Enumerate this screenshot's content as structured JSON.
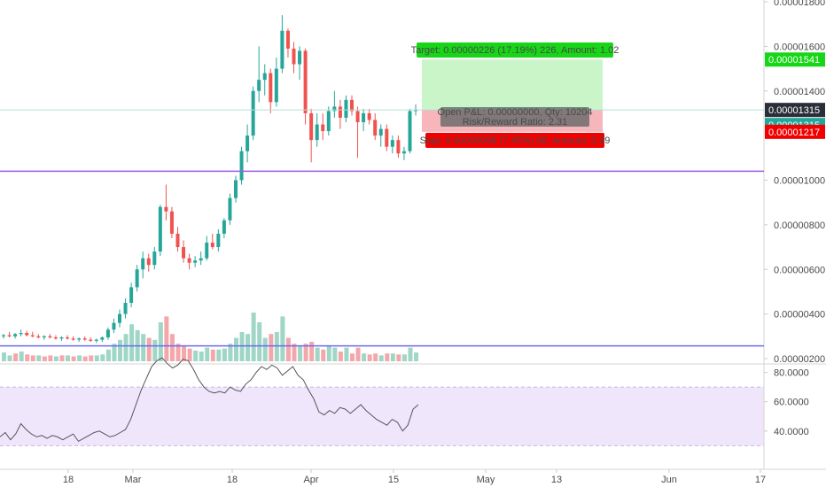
{
  "chart_data": {
    "type": "candlestick",
    "colors": {
      "up": "#26a69a",
      "down": "#ef5350",
      "vol_up": "#9fd6c6",
      "vol_down": "#f4a7ab",
      "hline": "#9c5ce0",
      "vol_hline": "#6a6af0",
      "current_line": "#b5dfd7",
      "target_zone": "#c9f5c9",
      "stop_zone": "#f7b6bc",
      "target_label": "#17d617",
      "stop_label": "#f00000",
      "rsi_band": "#f0e6fc",
      "rsi_line": "#555555"
    },
    "price_axis": {
      "range": [
        1.9e-06,
        1.8e-06
      ],
      "ticks": [
        "0.00001800",
        "0.00001600",
        "0.00001400",
        "0.00001000",
        "0.00000800",
        "0.00000600",
        "0.00000400",
        "0.00000200"
      ],
      "tick_values": [
        1.8e-05,
        1.6e-05,
        1.4e-05,
        1e-05,
        8e-06,
        6e-06,
        4e-06,
        2e-06
      ]
    },
    "rsi_axis": {
      "ticks": [
        "80.0000",
        "60.0000",
        "40.0000"
      ],
      "tick_values": [
        80,
        60,
        40
      ],
      "band": [
        30,
        70
      ]
    },
    "time_axis": {
      "labels": [
        "18",
        "Mar",
        "18",
        "Apr",
        "15",
        "May",
        "13",
        "Jun",
        "17"
      ]
    },
    "horizontal_lines": [
      1.04e-05,
      2.57e-06
    ],
    "position": {
      "entry": 1.315e-05,
      "target": 1.541e-05,
      "stop": 1.217e-05,
      "target_label": "Target: 0.00000226 (17.19%) 226, Amount: 1.02",
      "open_label": "Open P&L: 0.00000000, Qty: 10204",
      "rr_label": "Risk/Reward Ratio: 2.31",
      "stop_label": "Stop: 0.00000098 (7.45%) 98, Amount: 0.99"
    },
    "price_tags": [
      {
        "text": "0.00001541",
        "value": 1.541e-05,
        "color": "#17d617"
      },
      {
        "text": "0.00001315",
        "value": 1.315e-05,
        "color": "#2a2e39"
      },
      {
        "text": "0.00001315",
        "value": 1.315e-05,
        "color": "#26a69a",
        "offset": 1
      },
      {
        "text": "0.00001217",
        "value": 1.217e-05,
        "color": "#f00000"
      }
    ],
    "candles": [
      [
        3e-06,
        3.1e-06,
        2.9e-06,
        3.05e-06
      ],
      [
        3.05e-06,
        3.2e-06,
        2.95e-06,
        3e-06
      ],
      [
        3e-06,
        3.15e-06,
        2.9e-06,
        3.1e-06
      ],
      [
        3.1e-06,
        3.3e-06,
        3e-06,
        3.15e-06
      ],
      [
        3.15e-06,
        3.25e-06,
        3e-06,
        3.05e-06
      ],
      [
        3.05e-06,
        3.2e-06,
        2.95e-06,
        3e-06
      ],
      [
        3e-06,
        3.1e-06,
        2.9e-06,
        2.95e-06
      ],
      [
        2.95e-06,
        3.05e-06,
        2.85e-06,
        3e-06
      ],
      [
        3e-06,
        3.1e-06,
        2.9e-06,
        2.95e-06
      ],
      [
        2.95e-06,
        3.05e-06,
        2.85e-06,
        2.9e-06
      ],
      [
        2.9e-06,
        3e-06,
        2.8e-06,
        2.95e-06
      ],
      [
        2.95e-06,
        3.05e-06,
        2.85e-06,
        2.9e-06
      ],
      [
        2.9e-06,
        3e-06,
        2.8e-06,
        2.85e-06
      ],
      [
        2.85e-06,
        2.95e-06,
        2.75e-06,
        2.9e-06
      ],
      [
        2.9e-06,
        3e-06,
        2.8e-06,
        2.85e-06
      ],
      [
        2.85e-06,
        2.95e-06,
        2.75e-06,
        2.8e-06
      ],
      [
        2.8e-06,
        2.9e-06,
        2.7e-06,
        2.85e-06
      ],
      [
        2.85e-06,
        3e-06,
        2.75e-06,
        2.95e-06
      ],
      [
        2.95e-06,
        3.4e-06,
        2.85e-06,
        3.3e-06
      ],
      [
        3.3e-06,
        3.8e-06,
        3.15e-06,
        3.6e-06
      ],
      [
        3.6e-06,
        4.2e-06,
        3.4e-06,
        4e-06
      ],
      [
        4e-06,
        4.7e-06,
        3.8e-06,
        4.5e-06
      ],
      [
        4.5e-06,
        5.4e-06,
        4.3e-06,
        5.2e-06
      ],
      [
        5.2e-06,
        6.2e-06,
        5e-06,
        6e-06
      ],
      [
        6e-06,
        6.8e-06,
        5.6e-06,
        6.5e-06
      ],
      [
        6.5e-06,
        6.7e-06,
        5.9e-06,
        6.2e-06
      ],
      [
        6.2e-06,
        7e-06,
        6e-06,
        6.8e-06
      ],
      [
        6.8e-06,
        8.9e-06,
        6.6e-06,
        8.8e-06
      ],
      [
        8.8e-06,
        9.8e-06,
        8.2e-06,
        8.6e-06
      ],
      [
        8.6e-06,
        8.8e-06,
        7.4e-06,
        7.6e-06
      ],
      [
        7.6e-06,
        7.9e-06,
        6.8e-06,
        7e-06
      ],
      [
        7e-06,
        7.3e-06,
        6.3e-06,
        6.5e-06
      ],
      [
        6.5e-06,
        6.7e-06,
        6e-06,
        6.3e-06
      ],
      [
        6.3e-06,
        6.6e-06,
        6.1e-06,
        6.4e-06
      ],
      [
        6.4e-06,
        6.8e-06,
        6.2e-06,
        6.5e-06
      ],
      [
        6.5e-06,
        7.5e-06,
        6.4e-06,
        7.2e-06
      ],
      [
        7.2e-06,
        7.6e-06,
        6.9e-06,
        7e-06
      ],
      [
        7e-06,
        7.8e-06,
        6.8e-06,
        7.6e-06
      ],
      [
        7.6e-06,
        8.3e-06,
        7.4e-06,
        8.2e-06
      ],
      [
        8.2e-06,
        9.4e-06,
        8e-06,
        9.2e-06
      ],
      [
        9.2e-06,
        1.02e-05,
        9e-06,
        1e-05
      ],
      [
        1e-05,
        1.15e-05,
        9.8e-06,
        1.13e-05
      ],
      [
        1.13e-05,
        1.25e-05,
        1.08e-05,
        1.2e-05
      ],
      [
        1.2e-05,
        1.42e-05,
        1.18e-05,
        1.4e-05
      ],
      [
        1.4e-05,
        1.6e-05,
        1.35e-05,
        1.45e-05
      ],
      [
        1.45e-05,
        1.52e-05,
        1.38e-05,
        1.48e-05
      ],
      [
        1.48e-05,
        1.5e-05,
        1.3e-05,
        1.35e-05
      ],
      [
        1.35e-05,
        1.55e-05,
        1.33e-05,
        1.5e-05
      ],
      [
        1.5e-05,
        1.74e-05,
        1.48e-05,
        1.67e-05
      ],
      [
        1.67e-05,
        1.68e-05,
        1.55e-05,
        1.59e-05
      ],
      [
        1.59e-05,
        1.62e-05,
        1.48e-05,
        1.52e-05
      ],
      [
        1.52e-05,
        1.6e-05,
        1.45e-05,
        1.58e-05
      ],
      [
        1.58e-05,
        1.59e-05,
        1.25e-05,
        1.3e-05
      ],
      [
        1.3e-05,
        1.32e-05,
        1.08e-05,
        1.18e-05
      ],
      [
        1.18e-05,
        1.3e-05,
        1.15e-05,
        1.25e-05
      ],
      [
        1.25e-05,
        1.3e-05,
        1.18e-05,
        1.22e-05
      ],
      [
        1.22e-05,
        1.33e-05,
        1.2e-05,
        1.31e-05
      ],
      [
        1.31e-05,
        1.4e-05,
        1.28e-05,
        1.33e-05
      ],
      [
        1.33e-05,
        1.36e-05,
        1.23e-05,
        1.28e-05
      ],
      [
        1.28e-05,
        1.38e-05,
        1.26e-05,
        1.36e-05
      ],
      [
        1.36e-05,
        1.38e-05,
        1.29e-05,
        1.31e-05
      ],
      [
        1.31e-05,
        1.33e-05,
        1.1e-05,
        1.26e-05
      ],
      [
        1.26e-05,
        1.32e-05,
        1.22e-05,
        1.3e-05
      ],
      [
        1.3e-05,
        1.32e-05,
        1.25e-05,
        1.27e-05
      ],
      [
        1.27e-05,
        1.3e-05,
        1.18e-05,
        1.2e-05
      ],
      [
        1.2e-05,
        1.25e-05,
        1.15e-05,
        1.23e-05
      ],
      [
        1.23e-05,
        1.25e-05,
        1.13e-05,
        1.15e-05
      ],
      [
        1.15e-05,
        1.2e-05,
        1.12e-05,
        1.18e-05
      ],
      [
        1.18e-05,
        1.2e-05,
        1.1e-05,
        1.12e-05
      ],
      [
        1.12e-05,
        1.15e-05,
        1.09e-05,
        1.13e-05
      ],
      [
        1.13e-05,
        1.32e-05,
        1.12e-05,
        1.31e-05
      ],
      [
        1.31e-05,
        1.34e-05,
        1.29e-05,
        1.315e-05
      ]
    ],
    "volume": [
      [
        4.5e-07,
        1
      ],
      [
        3e-07,
        1
      ],
      [
        4e-07,
        0
      ],
      [
        5e-07,
        1
      ],
      [
        3.5e-07,
        0
      ],
      [
        3e-07,
        0
      ],
      [
        3e-07,
        1
      ],
      [
        2.5e-07,
        0
      ],
      [
        3e-07,
        0
      ],
      [
        2.5e-07,
        1
      ],
      [
        3e-07,
        0
      ],
      [
        3e-07,
        1
      ],
      [
        2.5e-07,
        0
      ],
      [
        3e-07,
        1
      ],
      [
        2.5e-07,
        0
      ],
      [
        3e-07,
        0
      ],
      [
        3e-07,
        1
      ],
      [
        3.5e-07,
        1
      ],
      [
        6e-07,
        1
      ],
      [
        9e-07,
        1
      ],
      [
        1.1e-06,
        1
      ],
      [
        1.4e-06,
        1
      ],
      [
        1.9e-06,
        1
      ],
      [
        1.6e-06,
        1
      ],
      [
        1.4e-06,
        1
      ],
      [
        1.2e-06,
        0
      ],
      [
        1.1e-06,
        1
      ],
      [
        2e-06,
        1
      ],
      [
        2.3e-06,
        0
      ],
      [
        1.4e-06,
        0
      ],
      [
        9e-07,
        0
      ],
      [
        8e-07,
        0
      ],
      [
        6.5e-07,
        0
      ],
      [
        5.5e-07,
        1
      ],
      [
        5e-07,
        1
      ],
      [
        7e-07,
        1
      ],
      [
        6e-07,
        0
      ],
      [
        6e-07,
        1
      ],
      [
        6.5e-07,
        1
      ],
      [
        9e-07,
        1
      ],
      [
        1.2e-06,
        1
      ],
      [
        1.5e-06,
        1
      ],
      [
        1.4e-06,
        1
      ],
      [
        2.5e-06,
        1
      ],
      [
        2e-06,
        1
      ],
      [
        1.2e-06,
        1
      ],
      [
        1.4e-06,
        0
      ],
      [
        1.5e-06,
        1
      ],
      [
        2.3e-06,
        1
      ],
      [
        1.2e-06,
        0
      ],
      [
        9e-07,
        0
      ],
      [
        8e-07,
        1
      ],
      [
        9e-07,
        0
      ],
      [
        1e-06,
        0
      ],
      [
        7e-07,
        1
      ],
      [
        6e-07,
        0
      ],
      [
        8e-07,
        1
      ],
      [
        7e-07,
        1
      ],
      [
        5e-07,
        0
      ],
      [
        7e-07,
        1
      ],
      [
        4e-07,
        0
      ],
      [
        7e-07,
        0
      ],
      [
        4e-07,
        1
      ],
      [
        3.5e-07,
        0
      ],
      [
        4e-07,
        0
      ],
      [
        3e-07,
        1
      ],
      [
        4e-07,
        0
      ],
      [
        4e-07,
        1
      ],
      [
        3.5e-07,
        0
      ],
      [
        3.5e-07,
        1
      ],
      [
        7e-07,
        1
      ],
      [
        4.5e-07,
        1
      ]
    ],
    "rsi": [
      36,
      39,
      34,
      38,
      45,
      41,
      38,
      36,
      37,
      35,
      37,
      36,
      34,
      36,
      38,
      33,
      35,
      37,
      39,
      40,
      38,
      36,
      37,
      39,
      41,
      48,
      58,
      68,
      76,
      84,
      88,
      90,
      86,
      83,
      85,
      89,
      88,
      82,
      75,
      70,
      67,
      66,
      67,
      66,
      70,
      68,
      67,
      72,
      75,
      80,
      84,
      82,
      85,
      83,
      78,
      81,
      84,
      78,
      75,
      68,
      62,
      53,
      51,
      54,
      52,
      56,
      55,
      52,
      55,
      58,
      54,
      51,
      48,
      46,
      44,
      48,
      46,
      40,
      44,
      55,
      58
    ]
  }
}
